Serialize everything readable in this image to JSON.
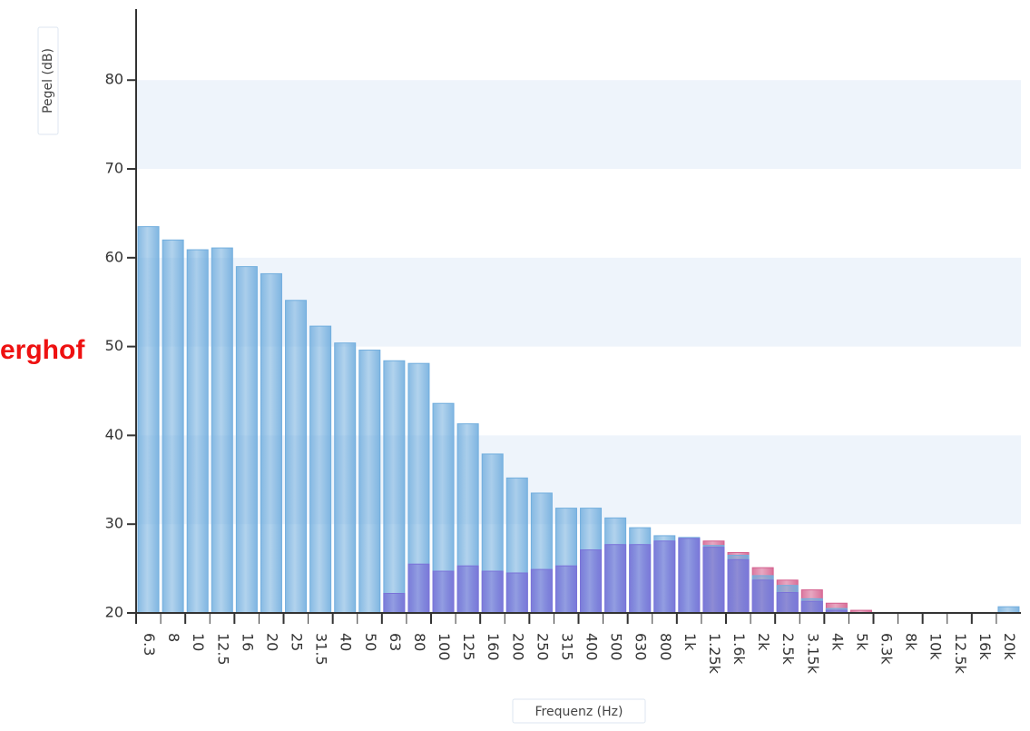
{
  "chart_data": {
    "type": "bar",
    "annotation": "erghof",
    "ylabel": "Pegel (dB)",
    "xlabel": "Frequenz (Hz)",
    "categories": [
      "6.3",
      "8",
      "10",
      "12.5",
      "16",
      "20",
      "25",
      "31.5",
      "40",
      "50",
      "63",
      "80",
      "100",
      "125",
      "160",
      "200",
      "250",
      "315",
      "400",
      "500",
      "630",
      "800",
      "1k",
      "1.25k",
      "1.6k",
      "2k",
      "2.5k",
      "3.15k",
      "4k",
      "5k",
      "6.3k",
      "8k",
      "10k",
      "12.5k",
      "16k",
      "20k"
    ],
    "series": [
      {
        "color": "#d4608e",
        "values": [
          null,
          null,
          null,
          null,
          null,
          null,
          null,
          null,
          null,
          null,
          null,
          null,
          null,
          null,
          null,
          null,
          null,
          null,
          null,
          null,
          null,
          null,
          null,
          28.1,
          26.8,
          25.1,
          23.7,
          22.6,
          21.1,
          20.3,
          null,
          null,
          null,
          null,
          null,
          null
        ]
      },
      {
        "color": "#72aede",
        "values": [
          63.5,
          62,
          60.9,
          61.1,
          59,
          58.2,
          55.2,
          52.3,
          50.4,
          49.6,
          48.4,
          48.1,
          43.6,
          41.3,
          37.9,
          35.2,
          33.5,
          31.8,
          31.8,
          30.7,
          29.6,
          28.7,
          28.5,
          27.6,
          26.5,
          24.2,
          23.1,
          21.6,
          20.5,
          null,
          null,
          null,
          null,
          null,
          null,
          20.7
        ]
      },
      {
        "color": "#7a72d8",
        "values": [
          null,
          null,
          null,
          null,
          null,
          null,
          null,
          null,
          null,
          null,
          22.2,
          25.5,
          24.7,
          25.3,
          24.7,
          24.5,
          24.9,
          25.3,
          27.1,
          27.7,
          27.7,
          28.1,
          28.4,
          27.4,
          26.0,
          23.7,
          22.3,
          21.3,
          20.3,
          null,
          null,
          null,
          null,
          null,
          null,
          null
        ]
      }
    ],
    "ylim": [
      20,
      88
    ],
    "yticks": [
      20,
      30,
      40,
      50,
      60,
      70,
      80
    ],
    "bands": true
  }
}
